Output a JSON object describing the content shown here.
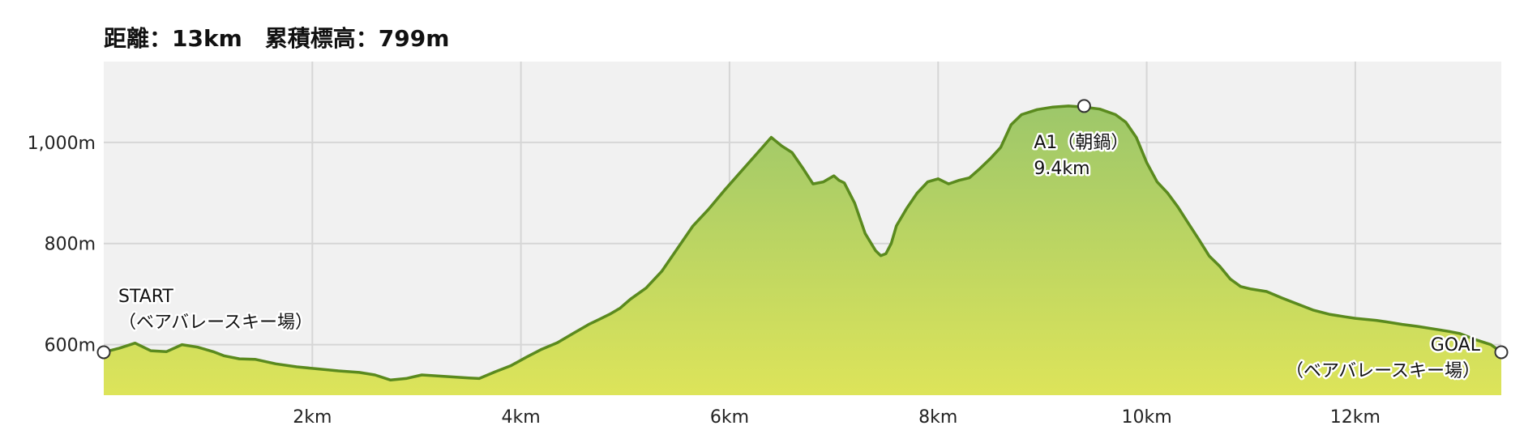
{
  "header": {
    "title": "距離：13km　累積標高：799m"
  },
  "chart_data": {
    "type": "area",
    "title": "距離：13km　累積標高：799m",
    "xlabel": "",
    "ylabel": "",
    "xlim": [
      0,
      13.4
    ],
    "ylim": [
      500,
      1160
    ],
    "grid": true,
    "x_ticks": [
      2,
      4,
      6,
      8,
      10,
      12
    ],
    "x_tick_labels": [
      "2km",
      "4km",
      "6km",
      "8km",
      "10km",
      "12km"
    ],
    "y_ticks": [
      600,
      800,
      1000
    ],
    "y_tick_labels": [
      "600m",
      "800m",
      "1,000m"
    ],
    "colors": {
      "line": "#5a8a1e",
      "fill_top": "#9dc76a",
      "fill_bottom": "#dde45a",
      "plot_bg": "#f1f1f1",
      "grid": "#d6d6d6"
    },
    "series": [
      {
        "x": [
          0,
          0.15,
          0.3,
          0.45,
          0.6,
          0.75,
          0.9,
          1.05,
          1.15,
          1.3,
          1.45,
          1.65,
          1.85,
          2.05,
          2.25,
          2.45,
          2.6,
          2.75,
          2.9,
          3.05,
          3.2,
          3.35,
          3.5,
          3.6,
          3.75,
          3.9,
          4.05,
          4.2,
          4.35,
          4.5,
          4.65,
          4.75,
          4.85,
          4.95,
          5.05,
          5.2,
          5.35,
          5.5,
          5.65,
          5.8,
          5.95,
          6.1,
          6.25,
          6.4,
          6.5,
          6.6,
          6.7,
          6.8,
          6.9,
          7.0,
          7.05,
          7.1,
          7.2,
          7.3,
          7.4,
          7.45,
          7.5,
          7.55,
          7.6,
          7.7,
          7.8,
          7.9,
          8.0,
          8.1,
          8.2,
          8.3,
          8.4,
          8.5,
          8.6,
          8.7,
          8.8,
          8.95,
          9.1,
          9.25,
          9.4,
          9.55,
          9.7,
          9.8,
          9.9,
          10.0,
          10.1,
          10.2,
          10.3,
          10.4,
          10.5,
          10.6,
          10.7,
          10.8,
          10.9,
          11.0,
          11.15,
          11.3,
          11.45,
          11.6,
          11.75,
          11.9,
          12.0,
          12.1,
          12.2,
          12.3,
          12.45,
          12.6,
          12.75,
          12.9,
          13.0,
          13.15,
          13.3,
          13.4
        ],
        "y": [
          585,
          593,
          603,
          588,
          586,
          600,
          595,
          586,
          578,
          572,
          571,
          562,
          556,
          552,
          548,
          545,
          540,
          530,
          533,
          540,
          538,
          536,
          534,
          533,
          546,
          558,
          575,
          591,
          604,
          622,
          640,
          650,
          660,
          672,
          690,
          712,
          745,
          790,
          835,
          868,
          905,
          940,
          975,
          1010,
          993,
          980,
          950,
          918,
          922,
          934,
          925,
          920,
          880,
          820,
          786,
          776,
          780,
          800,
          835,
          870,
          900,
          922,
          928,
          918,
          925,
          930,
          948,
          968,
          990,
          1035,
          1055,
          1065,
          1070,
          1072,
          1070,
          1066,
          1055,
          1040,
          1010,
          960,
          922,
          900,
          872,
          840,
          808,
          775,
          755,
          730,
          715,
          710,
          705,
          692,
          680,
          668,
          660,
          655,
          652,
          650,
          648,
          645,
          640,
          636,
          631,
          626,
          622,
          610,
          600,
          585
        ]
      }
    ],
    "annotations": [
      {
        "x": 0,
        "y": 585,
        "lines": [
          "START",
          "（ベアバレースキー場）"
        ],
        "position": "above-right"
      },
      {
        "x": 9.4,
        "y": 1072,
        "lines": [
          "A1（朝鍋）",
          "9.4km"
        ],
        "position": "below"
      },
      {
        "x": 13.4,
        "y": 585,
        "lines": [
          "GOAL",
          "（ベアバレースキー場）"
        ],
        "position": "left"
      }
    ]
  }
}
